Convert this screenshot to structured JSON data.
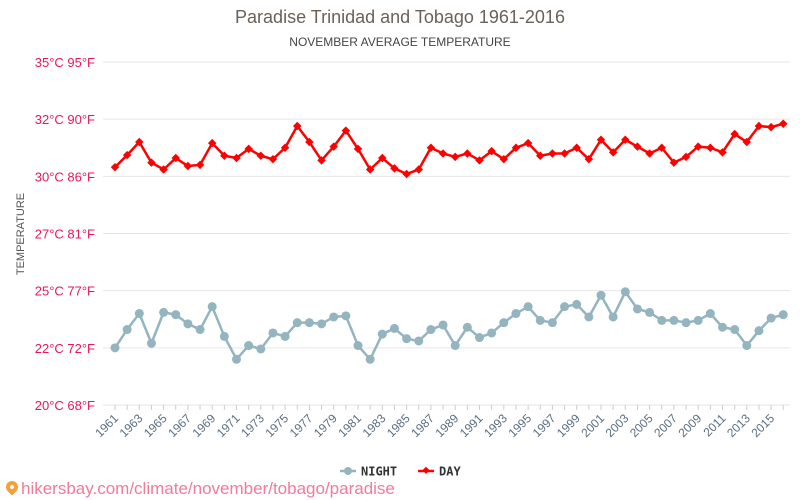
{
  "chart_data": {
    "type": "line",
    "title": "Paradise Trinidad and Tobago 1961-2016",
    "subtitle": "NOVEMBER AVERAGE TEMPERATURE",
    "ylabel": "TEMPERATURE",
    "xlabel": "",
    "ylim": [
      20,
      35
    ],
    "y_ticks": [
      {
        "value": 20,
        "label": "20°C 68°F"
      },
      {
        "value": 22.5,
        "label": "22°C 72°F"
      },
      {
        "value": 25,
        "label": "25°C 77°F"
      },
      {
        "value": 27.5,
        "label": "27°C 81°F"
      },
      {
        "value": 30,
        "label": "30°C 86°F"
      },
      {
        "value": 32.5,
        "label": "32°C 90°F"
      },
      {
        "value": 35,
        "label": "35°C 95°F"
      }
    ],
    "grid": true,
    "legend_position": "bottom-center",
    "x": [
      1961,
      1962,
      1963,
      1964,
      1965,
      1966,
      1967,
      1968,
      1969,
      1970,
      1971,
      1972,
      1973,
      1974,
      1975,
      1976,
      1977,
      1978,
      1979,
      1980,
      1981,
      1982,
      1983,
      1984,
      1985,
      1986,
      1987,
      1988,
      1989,
      1990,
      1991,
      1992,
      1993,
      1994,
      1995,
      1996,
      1997,
      1998,
      1999,
      2000,
      2001,
      2002,
      2003,
      2004,
      2005,
      2006,
      2007,
      2008,
      2009,
      2010,
      2011,
      2012,
      2013,
      2014,
      2015,
      2016
    ],
    "series": [
      {
        "name": "NIGHT",
        "color": "#94b4bf",
        "values": [
          22.5,
          23.3,
          24.0,
          22.7,
          24.05,
          23.95,
          23.55,
          23.3,
          24.3,
          23.0,
          22.0,
          22.6,
          22.45,
          23.15,
          23.0,
          23.6,
          23.6,
          23.55,
          23.85,
          23.9,
          22.6,
          22.0,
          23.1,
          23.35,
          22.9,
          22.8,
          23.3,
          23.5,
          22.6,
          23.4,
          22.95,
          23.15,
          23.6,
          24.0,
          24.3,
          23.7,
          23.6,
          24.3,
          24.4,
          23.85,
          24.8,
          23.85,
          24.95,
          24.2,
          24.05,
          23.7,
          23.7,
          23.6,
          23.7,
          24.0,
          23.4,
          23.3,
          22.6,
          23.25,
          23.8,
          23.95
        ]
      },
      {
        "name": "DAY",
        "color": "#ff0000",
        "values": [
          30.4,
          30.93,
          31.5,
          30.6,
          30.3,
          30.8,
          30.45,
          30.5,
          31.45,
          30.9,
          30.8,
          31.2,
          30.9,
          30.75,
          31.25,
          32.2,
          31.5,
          30.7,
          31.3,
          32.0,
          31.2,
          30.3,
          30.8,
          30.35,
          30.1,
          30.3,
          31.25,
          31.0,
          30.85,
          31.0,
          30.7,
          31.1,
          30.75,
          31.25,
          31.45,
          30.9,
          31.0,
          31.0,
          31.25,
          30.75,
          31.6,
          31.05,
          31.6,
          31.3,
          31.0,
          31.25,
          30.6,
          30.85,
          31.3,
          31.25,
          31.05,
          31.85,
          31.5,
          32.2,
          32.15,
          32.3
        ]
      }
    ]
  },
  "footer": {
    "url": "hikersbay.com/climate/november/tobago/paradise"
  },
  "colors": {
    "axis_label": "#e8175d",
    "tick_label": "#5a6e80",
    "grid": "#e6e6e6"
  }
}
